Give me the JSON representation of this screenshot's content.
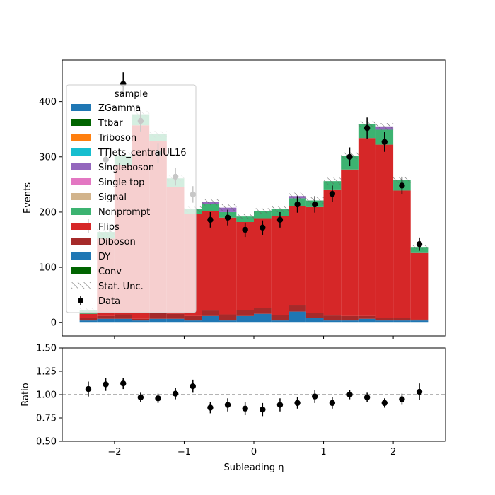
{
  "chart_data": {
    "type": "bar",
    "xlabel": "Subleading η",
    "ylabel": "Events",
    "ratio_ylabel": "Ratio",
    "x_ticks": [
      "−2",
      "−1",
      "0",
      "1",
      "2"
    ],
    "x_tick_values": [
      -2,
      -1,
      0,
      1,
      2
    ],
    "y_ticks": [
      "0",
      "100",
      "200",
      "300",
      "400"
    ],
    "y_tick_values": [
      0,
      100,
      200,
      300,
      400
    ],
    "ratio_ticks": [
      "0.50",
      "0.75",
      "1.00",
      "1.25",
      "1.50"
    ],
    "ratio_tick_values": [
      0.5,
      0.75,
      1.0,
      1.25,
      1.5
    ],
    "xlim": [
      -2.75,
      2.75
    ],
    "ylim": [
      -24,
      475
    ],
    "ratio_ylim": [
      0.5,
      1.5
    ],
    "bin_edges": [
      -2.5,
      -2.25,
      -2.0,
      -1.75,
      -1.5,
      -1.25,
      -1.0,
      -0.75,
      -0.5,
      -0.25,
      0.0,
      0.25,
      0.5,
      0.75,
      1.0,
      1.25,
      1.5,
      1.75,
      2.0,
      2.25,
      2.5
    ],
    "legend_title": "sample",
    "legend_position": "upper-left",
    "series": [
      {
        "name": "DY",
        "color": "#1f77b4",
        "values": [
          4,
          7,
          7,
          4,
          7,
          7,
          4,
          12,
          4,
          12,
          16,
          4,
          20,
          9,
          4,
          4,
          7,
          4,
          4,
          4
        ]
      },
      {
        "name": "Diboson",
        "color": "#a52a2a",
        "values": [
          4,
          5,
          8,
          3,
          12,
          9,
          8,
          10,
          11,
          11,
          11,
          10,
          11,
          9,
          9,
          8,
          5,
          4,
          4,
          2
        ]
      },
      {
        "name": "Flips",
        "color": "#d62728",
        "values": [
          8,
          140,
          270,
          350,
          310,
          230,
          185,
          180,
          175,
          159,
          162,
          179,
          180,
          191,
          228,
          265,
          322,
          314,
          231,
          120
        ]
      },
      {
        "name": "Nonprompt",
        "color": "#3cb371",
        "values": [
          6,
          12,
          17,
          20,
          12,
          15,
          8,
          12,
          10,
          10,
          13,
          12,
          14,
          12,
          15,
          25,
          25,
          27,
          19,
          11
        ]
      },
      {
        "name": "Signal",
        "color": "#d2b48c",
        "values": [
          0,
          0,
          0,
          0,
          0,
          0,
          0,
          0,
          0,
          0,
          0,
          0,
          0,
          0,
          0,
          0,
          0,
          0,
          0,
          0
        ]
      },
      {
        "name": "Single top",
        "color": "#e377c2",
        "values": [
          0,
          0,
          0,
          0,
          0,
          0,
          0,
          0,
          0,
          0,
          0,
          0,
          0,
          0,
          0,
          0,
          0,
          0,
          0,
          0
        ]
      },
      {
        "name": "Singleboson",
        "color": "#9467bd",
        "values": [
          0,
          0,
          0,
          0,
          0,
          0,
          0,
          4,
          8,
          0,
          0,
          0,
          4,
          0,
          0,
          0,
          0,
          6,
          0,
          0
        ]
      },
      {
        "name": "TTJets_centralUL16",
        "color": "#17becf",
        "values": [
          0,
          0,
          0,
          0,
          0,
          0,
          0,
          0,
          0,
          0,
          0,
          0,
          0,
          0,
          0,
          0,
          0,
          0,
          0,
          0
        ]
      },
      {
        "name": "Triboson",
        "color": "#ff7f0e",
        "values": [
          0,
          0,
          0,
          0,
          0,
          0,
          0,
          0,
          0,
          0,
          0,
          0,
          0,
          0,
          0,
          0,
          0,
          0,
          0,
          0
        ]
      },
      {
        "name": "Ttbar",
        "color": "#006400",
        "values": [
          0,
          0,
          0,
          0,
          0,
          0,
          0,
          0,
          0,
          0,
          0,
          0,
          0,
          0,
          0,
          0,
          0,
          0,
          0,
          0
        ]
      },
      {
        "name": "ZGamma",
        "color": "#1f77b4",
        "values": [
          0,
          0,
          0,
          0,
          0,
          0,
          0,
          0,
          0,
          0,
          0,
          0,
          0,
          0,
          0,
          0,
          0,
          0,
          0,
          0
        ]
      },
      {
        "name": "Conv",
        "color": "#006400",
        "values": [
          0,
          0,
          0,
          0,
          0,
          0,
          0,
          0,
          0,
          0,
          0,
          0,
          0,
          0,
          0,
          0,
          0,
          0,
          0,
          0
        ]
      }
    ],
    "stat_unc": [
      5,
      6,
      6,
      6,
      6,
      5,
      5,
      6,
      7,
      5,
      5,
      5,
      6,
      6,
      6,
      6,
      6,
      6,
      5,
      4
    ],
    "data": {
      "name": "Data",
      "x": [
        -2.375,
        -2.125,
        -1.875,
        -1.625,
        -1.375,
        -1.125,
        -0.875,
        -0.625,
        -0.375,
        -0.125,
        0.125,
        0.375,
        0.625,
        0.875,
        1.125,
        1.375,
        1.625,
        1.875,
        2.125,
        2.375
      ],
      "y": [
        175,
        295,
        432,
        365,
        307,
        264,
        232,
        186,
        190,
        168,
        172,
        186,
        214,
        214,
        233,
        300,
        352,
        327,
        248,
        142
      ],
      "err": [
        13,
        17,
        21,
        19,
        18,
        16,
        15,
        14,
        14,
        13,
        13,
        14,
        15,
        15,
        15,
        17,
        19,
        18,
        16,
        12
      ]
    },
    "ratio": {
      "y": [
        1.06,
        1.11,
        1.12,
        0.97,
        0.96,
        1.01,
        1.09,
        0.86,
        0.89,
        0.85,
        0.84,
        0.89,
        0.91,
        0.98,
        0.91,
        1.0,
        0.97,
        0.91,
        0.95,
        1.03
      ],
      "err": [
        0.08,
        0.07,
        0.06,
        0.05,
        0.05,
        0.06,
        0.07,
        0.06,
        0.07,
        0.07,
        0.07,
        0.07,
        0.06,
        0.07,
        0.06,
        0.05,
        0.05,
        0.05,
        0.06,
        0.09
      ]
    },
    "legend": [
      "ZGamma",
      "Ttbar",
      "Triboson",
      "TTJets_centralUL16",
      "Singleboson",
      "Single top",
      "Signal",
      "Nonprompt",
      "Flips",
      "Diboson",
      "DY",
      "Conv",
      "Stat. Unc.",
      "Data"
    ]
  }
}
